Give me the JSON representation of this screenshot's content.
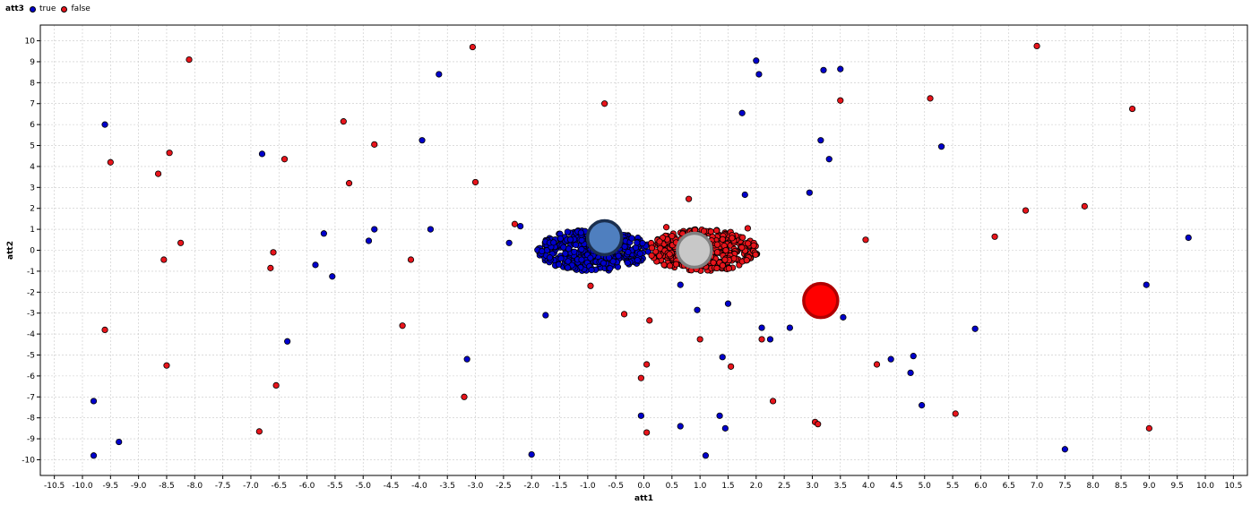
{
  "chart_data": {
    "type": "scatter",
    "xlabel": "att1",
    "ylabel": "att2",
    "xlim": [
      -10.75,
      10.75
    ],
    "ylim": [
      -10.75,
      10.75
    ],
    "x_ticks": [
      -10.5,
      -10.0,
      -9.5,
      -9.0,
      -8.5,
      -8.0,
      -7.5,
      -7.0,
      -6.5,
      -6.0,
      -5.5,
      -5.0,
      -4.5,
      -4.0,
      -3.5,
      -3.0,
      -2.5,
      -2.0,
      -1.5,
      -1.0,
      -0.5,
      0.0,
      0.5,
      1.0,
      1.5,
      2.0,
      2.5,
      3.0,
      3.5,
      4.0,
      4.5,
      5.0,
      5.5,
      6.0,
      6.5,
      7.0,
      7.5,
      8.0,
      8.5,
      9.0,
      9.5,
      10.0,
      10.5
    ],
    "x_tick_labels": [
      "-10.5",
      "-10.0",
      "-9.5",
      "-9.0",
      "-8.5",
      "-8.0",
      "-7.5",
      "-7.0",
      "-6.5",
      "-6.0",
      "-5.5",
      "-5.0",
      "-4.5",
      "-4.0",
      "-3.5",
      "-3.0",
      "-2.5",
      "-2.0",
      "-1.5",
      "-1.0",
      "-0.5",
      "0.0",
      "0.5",
      "1.0",
      "1.5",
      "2.0",
      "2.5",
      "3.0",
      "3.5",
      "4.0",
      "4.5",
      "5.0",
      "5.5",
      "6.0",
      "6.5",
      "7.0",
      "7.5",
      "8.0",
      "8.5",
      "9.0",
      "9.5",
      "10.0",
      "10.5"
    ],
    "y_ticks": [
      10,
      9,
      8,
      7,
      6,
      5,
      4,
      3,
      2,
      1,
      0,
      -1,
      -2,
      -3,
      -4,
      -5,
      -6,
      -7,
      -8,
      -9,
      -10
    ],
    "y_tick_labels": [
      "10",
      "9",
      "8",
      "7",
      "6",
      "5",
      "4",
      "3",
      "2",
      "1",
      "0",
      "-1",
      "-2",
      "-3",
      "-4",
      "-5",
      "-6",
      "-7",
      "-8",
      "-9",
      "-10"
    ],
    "grid": true,
    "legend": {
      "title": "att3",
      "placement": "top-left",
      "entries": [
        {
          "label": "true",
          "color": "#0000cc"
        },
        {
          "label": "false",
          "color": "#e8141b"
        }
      ]
    },
    "series": [
      {
        "name": "true",
        "color": "#0000cc",
        "points": [
          [
            -9.8,
            -7.2
          ],
          [
            -9.8,
            -9.8
          ],
          [
            -9.6,
            6.0
          ],
          [
            -9.35,
            -9.15
          ],
          [
            -6.8,
            4.6
          ],
          [
            -6.35,
            -4.35
          ],
          [
            -5.85,
            -0.7
          ],
          [
            -5.7,
            0.8
          ],
          [
            -5.55,
            -1.25
          ],
          [
            -4.9,
            0.45
          ],
          [
            -4.8,
            1.0
          ],
          [
            -3.95,
            5.25
          ],
          [
            -3.8,
            1.0
          ],
          [
            -3.65,
            8.4
          ],
          [
            -3.15,
            -5.2
          ],
          [
            -2.4,
            0.35
          ],
          [
            -2.2,
            1.15
          ],
          [
            -2.0,
            -9.75
          ],
          [
            -1.75,
            -3.1
          ],
          [
            0.65,
            -1.65
          ],
          [
            0.95,
            -2.85
          ],
          [
            1.5,
            -2.55
          ],
          [
            2.0,
            9.05
          ],
          [
            2.05,
            8.4
          ],
          [
            1.75,
            6.55
          ],
          [
            1.8,
            2.65
          ],
          [
            2.1,
            -3.7
          ],
          [
            2.25,
            -4.25
          ],
          [
            2.6,
            -3.7
          ],
          [
            2.95,
            2.75
          ],
          [
            3.15,
            5.25
          ],
          [
            3.2,
            8.6
          ],
          [
            3.3,
            4.35
          ],
          [
            3.5,
            8.65
          ],
          [
            3.55,
            -3.2
          ],
          [
            -0.05,
            -7.9
          ],
          [
            0.65,
            -8.4
          ],
          [
            1.1,
            -9.8
          ],
          [
            1.35,
            -7.9
          ],
          [
            1.4,
            -5.1
          ],
          [
            1.45,
            -8.5
          ],
          [
            4.4,
            -5.2
          ],
          [
            4.75,
            -5.85
          ],
          [
            4.8,
            -5.05
          ],
          [
            4.95,
            -7.4
          ],
          [
            5.3,
            4.95
          ],
          [
            5.9,
            -3.75
          ],
          [
            7.5,
            -9.5
          ],
          [
            8.95,
            -1.65
          ],
          [
            9.7,
            0.6
          ]
        ],
        "cluster": {
          "center": [
            -0.9,
            0.0
          ],
          "x_spread": 1.0,
          "y_spread": 1.0,
          "count": 420
        }
      },
      {
        "name": "false",
        "color": "#e8141b",
        "points": [
          [
            -9.5,
            4.2
          ],
          [
            -9.6,
            -3.8
          ],
          [
            -8.65,
            3.65
          ],
          [
            -8.55,
            -0.45
          ],
          [
            -8.5,
            -5.5
          ],
          [
            -8.45,
            4.65
          ],
          [
            -8.25,
            0.35
          ],
          [
            -8.1,
            9.1
          ],
          [
            -6.85,
            -8.65
          ],
          [
            -6.65,
            -0.85
          ],
          [
            -6.6,
            -0.1
          ],
          [
            -6.55,
            -6.45
          ],
          [
            -6.4,
            4.35
          ],
          [
            -5.35,
            6.15
          ],
          [
            -5.25,
            3.2
          ],
          [
            -4.8,
            5.05
          ],
          [
            -4.3,
            -3.6
          ],
          [
            -4.15,
            -0.45
          ],
          [
            -3.2,
            -7.0
          ],
          [
            -3.05,
            9.7
          ],
          [
            -3.0,
            3.25
          ],
          [
            -2.3,
            1.25
          ],
          [
            -0.7,
            7.0
          ],
          [
            -0.95,
            -1.7
          ],
          [
            -0.35,
            -3.05
          ],
          [
            0.1,
            -3.35
          ],
          [
            0.4,
            1.1
          ],
          [
            0.8,
            2.45
          ],
          [
            1.0,
            -4.25
          ],
          [
            1.55,
            -5.55
          ],
          [
            1.85,
            1.05
          ],
          [
            2.1,
            -4.25
          ],
          [
            2.3,
            -7.2
          ],
          [
            -0.05,
            -6.1
          ],
          [
            0.05,
            -5.45
          ],
          [
            0.05,
            -8.7
          ],
          [
            3.05,
            -8.2
          ],
          [
            3.1,
            -8.3
          ],
          [
            3.5,
            7.15
          ],
          [
            3.95,
            0.5
          ],
          [
            4.15,
            -5.45
          ],
          [
            5.1,
            7.25
          ],
          [
            5.55,
            -7.8
          ],
          [
            6.25,
            0.65
          ],
          [
            6.8,
            1.9
          ],
          [
            7.0,
            9.75
          ],
          [
            7.85,
            2.1
          ],
          [
            8.7,
            6.75
          ],
          [
            9.0,
            -8.5
          ]
        ],
        "cluster": {
          "center": [
            1.05,
            0.0
          ],
          "x_spread": 1.0,
          "y_spread": 1.0,
          "count": 420
        }
      }
    ],
    "highlight_markers": [
      {
        "x": -0.7,
        "y": 0.6,
        "fill": "#4f7fbf",
        "stroke": "#1b2f4f"
      },
      {
        "x": 0.9,
        "y": 0.0,
        "fill": "#c8c8c8",
        "stroke": "#808080"
      },
      {
        "x": 3.15,
        "y": -2.4,
        "fill": "#ff0000",
        "stroke": "#b00000"
      }
    ]
  }
}
